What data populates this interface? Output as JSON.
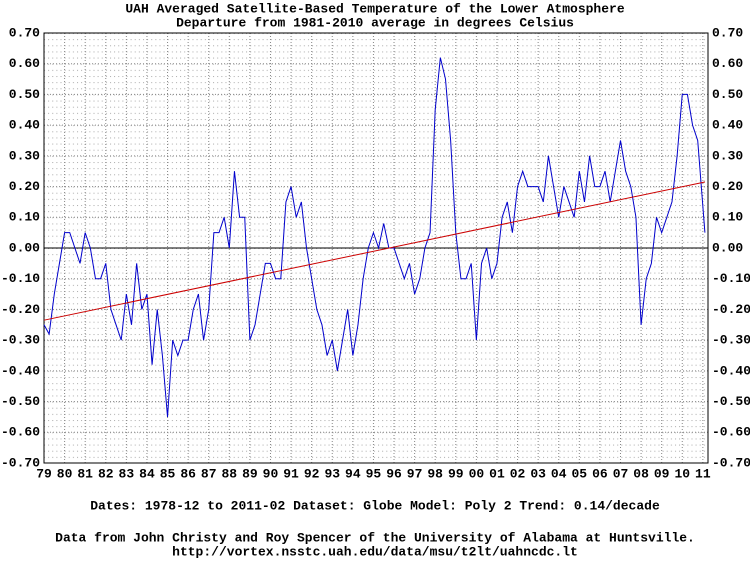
{
  "chart_data": {
    "type": "line",
    "title": "UAH Averaged Satellite-Based Temperature of the Lower Atmosphere",
    "subtitle": "Departure from 1981-2010 average in degrees Celsius",
    "footer": "Dates: 1978-12 to 2011-02  Dataset: Globe  Model: Poly 2  Trend:  0.14/decade",
    "credit": "Data from John Christy and Roy Spencer of the University of Alabama at Huntsville.",
    "url": "http://vortex.nsstc.uah.edu/data/msu/t2lt/uahncdc.lt",
    "xlim": [
      1979,
      2011.25
    ],
    "ylim": [
      -0.7,
      0.7
    ],
    "grid": true,
    "xticks": [
      {
        "value": 1979,
        "label": "79"
      },
      {
        "value": 1980,
        "label": "80"
      },
      {
        "value": 1981,
        "label": "81"
      },
      {
        "value": 1982,
        "label": "82"
      },
      {
        "value": 1983,
        "label": "83"
      },
      {
        "value": 1984,
        "label": "84"
      },
      {
        "value": 1985,
        "label": "85"
      },
      {
        "value": 1986,
        "label": "86"
      },
      {
        "value": 1987,
        "label": "87"
      },
      {
        "value": 1988,
        "label": "88"
      },
      {
        "value": 1989,
        "label": "89"
      },
      {
        "value": 1990,
        "label": "90"
      },
      {
        "value": 1991,
        "label": "91"
      },
      {
        "value": 1992,
        "label": "92"
      },
      {
        "value": 1993,
        "label": "93"
      },
      {
        "value": 1994,
        "label": "94"
      },
      {
        "value": 1995,
        "label": "95"
      },
      {
        "value": 1996,
        "label": "96"
      },
      {
        "value": 1997,
        "label": "97"
      },
      {
        "value": 1998,
        "label": "98"
      },
      {
        "value": 1999,
        "label": "99"
      },
      {
        "value": 2000,
        "label": "00"
      },
      {
        "value": 2001,
        "label": "01"
      },
      {
        "value": 2002,
        "label": "02"
      },
      {
        "value": 2003,
        "label": "03"
      },
      {
        "value": 2004,
        "label": "04"
      },
      {
        "value": 2005,
        "label": "05"
      },
      {
        "value": 2006,
        "label": "06"
      },
      {
        "value": 2007,
        "label": "07"
      },
      {
        "value": 2008,
        "label": "08"
      },
      {
        "value": 2009,
        "label": "09"
      },
      {
        "value": 2010,
        "label": "10"
      },
      {
        "value": 2011,
        "label": "11"
      }
    ],
    "yticks": [
      {
        "value": 0.7,
        "label": "0.70"
      },
      {
        "value": 0.6,
        "label": "0.60"
      },
      {
        "value": 0.5,
        "label": "0.50"
      },
      {
        "value": 0.4,
        "label": "0.40"
      },
      {
        "value": 0.3,
        "label": "0.30"
      },
      {
        "value": 0.2,
        "label": "0.20"
      },
      {
        "value": 0.1,
        "label": "0.10"
      },
      {
        "value": 0,
        "label": "0.00"
      },
      {
        "value": -0.1,
        "label": "-0.10"
      },
      {
        "value": -0.2,
        "label": "-0.20"
      },
      {
        "value": -0.3,
        "label": "-0.30"
      },
      {
        "value": -0.4,
        "label": "-0.40"
      },
      {
        "value": -0.5,
        "label": "-0.50"
      },
      {
        "value": -0.6,
        "label": "-0.60"
      },
      {
        "value": -0.7,
        "label": "-0.70"
      }
    ],
    "series": [
      {
        "color": "#0000cc",
        "x": [
          1979,
          1979.25,
          1979.5,
          1979.75,
          1980,
          1980.25,
          1980.5,
          1980.75,
          1981,
          1981.25,
          1981.5,
          1981.75,
          1982,
          1982.25,
          1982.5,
          1982.75,
          1983,
          1983.25,
          1983.5,
          1983.75,
          1984,
          1984.25,
          1984.5,
          1984.75,
          1985,
          1985.25,
          1985.5,
          1985.75,
          1986,
          1986.25,
          1986.5,
          1986.75,
          1987,
          1987.25,
          1987.5,
          1987.75,
          1988,
          1988.25,
          1988.5,
          1988.75,
          1989,
          1989.25,
          1989.5,
          1989.75,
          1990,
          1990.25,
          1990.5,
          1990.75,
          1991,
          1991.25,
          1991.5,
          1991.75,
          1992,
          1992.25,
          1992.5,
          1992.75,
          1993,
          1993.25,
          1993.5,
          1993.75,
          1994,
          1994.25,
          1994.5,
          1994.75,
          1995,
          1995.25,
          1995.5,
          1995.75,
          1996,
          1996.25,
          1996.5,
          1996.75,
          1997,
          1997.25,
          1997.5,
          1997.75,
          1998,
          1998.25,
          1998.5,
          1998.75,
          1999,
          1999.25,
          1999.5,
          1999.75,
          2000,
          2000.25,
          2000.5,
          2000.75,
          2001,
          2001.25,
          2001.5,
          2001.75,
          2002,
          2002.25,
          2002.5,
          2002.75,
          2003,
          2003.25,
          2003.5,
          2003.75,
          2004,
          2004.25,
          2004.5,
          2004.75,
          2005,
          2005.25,
          2005.5,
          2005.75,
          2006,
          2006.25,
          2006.5,
          2006.75,
          2007,
          2007.25,
          2007.5,
          2007.75,
          2008,
          2008.25,
          2008.5,
          2008.75,
          2009,
          2009.25,
          2009.5,
          2009.75,
          2010,
          2010.25,
          2010.5,
          2010.75,
          2011.1
        ],
        "values": [
          -0.25,
          -0.28,
          -0.15,
          -0.05,
          0.05,
          0.05,
          0.0,
          -0.05,
          0.05,
          0.0,
          -0.1,
          -0.1,
          -0.05,
          -0.2,
          -0.25,
          -0.3,
          -0.15,
          -0.25,
          -0.05,
          -0.2,
          -0.15,
          -0.38,
          -0.2,
          -0.35,
          -0.55,
          -0.3,
          -0.35,
          -0.3,
          -0.3,
          -0.2,
          -0.15,
          -0.3,
          -0.2,
          0.05,
          0.05,
          0.1,
          0.0,
          0.25,
          0.1,
          0.1,
          -0.3,
          -0.25,
          -0.15,
          -0.05,
          -0.05,
          -0.1,
          -0.1,
          0.15,
          0.2,
          0.1,
          0.15,
          0.0,
          -0.1,
          -0.2,
          -0.25,
          -0.35,
          -0.3,
          -0.4,
          -0.3,
          -0.2,
          -0.35,
          -0.25,
          -0.1,
          0.0,
          0.05,
          0.0,
          0.08,
          0.0,
          0.0,
          -0.05,
          -0.1,
          -0.05,
          -0.15,
          -0.1,
          0.0,
          0.05,
          0.45,
          0.62,
          0.55,
          0.35,
          0.05,
          -0.1,
          -0.1,
          -0.05,
          -0.3,
          -0.05,
          0.0,
          -0.1,
          -0.05,
          0.1,
          0.15,
          0.05,
          0.2,
          0.25,
          0.2,
          0.2,
          0.2,
          0.15,
          0.3,
          0.2,
          0.1,
          0.2,
          0.15,
          0.1,
          0.25,
          0.15,
          0.3,
          0.2,
          0.2,
          0.25,
          0.15,
          0.25,
          0.35,
          0.25,
          0.2,
          0.1,
          -0.25,
          -0.1,
          -0.05,
          0.1,
          0.05,
          0.1,
          0.15,
          0.3,
          0.5,
          0.5,
          0.4,
          0.35,
          0.05
        ]
      },
      {
        "color": "#cc0000",
        "x": [
          1979,
          2011.1
        ],
        "values": [
          -0.235,
          0.215
        ]
      }
    ]
  }
}
